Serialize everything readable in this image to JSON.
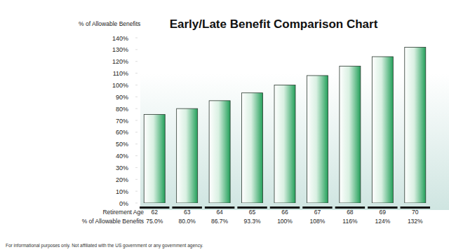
{
  "chart_data": {
    "type": "bar",
    "title": "Early/Late Benefit Comparison Chart",
    "y_label": "% of Allowable Benefits",
    "x_label": "Retirement Age",
    "row_label": "% of Allowable Benefits",
    "footnote": "For informational purposes only. Not affiliated with the US government or any government agency.",
    "categories": [
      "62",
      "63",
      "64",
      "65",
      "66",
      "67",
      "68",
      "69",
      "70"
    ],
    "values": [
      75.0,
      80.0,
      86.7,
      93.3,
      100,
      108,
      116,
      124,
      132
    ],
    "value_labels": [
      "75.0%",
      "80.0%",
      "86.7%",
      "93.3%",
      "100%",
      "108%",
      "116%",
      "124%",
      "132%"
    ],
    "data_labels": true,
    "color": "#23a05a",
    "ylim": [
      0,
      140
    ],
    "yticks": [
      {
        "value": 0,
        "label": "0%"
      },
      {
        "value": 10,
        "label": "10%"
      },
      {
        "value": 20,
        "label": "20%"
      },
      {
        "value": 30,
        "label": "30%"
      },
      {
        "value": 40,
        "label": "40%"
      },
      {
        "value": 50,
        "label": "50%"
      },
      {
        "value": 60,
        "label": "60%"
      },
      {
        "value": 70,
        "label": "70%"
      },
      {
        "value": 80,
        "label": "80%"
      },
      {
        "value": 90,
        "label": "90%"
      },
      {
        "value": 100,
        "label": "100%"
      },
      {
        "value": 110,
        "label": "110%"
      },
      {
        "value": 120,
        "label": "120%"
      },
      {
        "value": 130,
        "label": "130%"
      },
      {
        "value": 140,
        "label": "140%"
      }
    ],
    "grid": false
  }
}
